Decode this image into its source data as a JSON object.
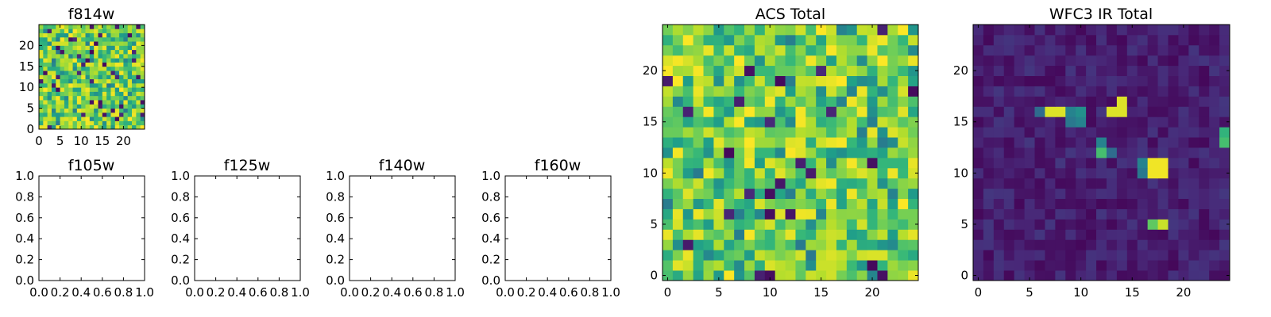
{
  "chart_data": [
    {
      "type": "heatmap",
      "title": "f814w",
      "grid_size": 25,
      "colormap": "viridis",
      "x_ticks": [
        "0",
        "5",
        "10",
        "15",
        "20"
      ],
      "y_ticks": [
        "0",
        "5",
        "10",
        "15",
        "20"
      ],
      "xlim": [
        0,
        25
      ],
      "ylim": [
        0,
        25
      ],
      "pattern": "noisy"
    },
    {
      "type": "scatter",
      "title": "f105w",
      "series": [],
      "xlim": [
        0,
        1
      ],
      "ylim": [
        0,
        1
      ],
      "x_ticks": [
        "0.0",
        "0.2",
        "0.4",
        "0.6",
        "0.8",
        "1.0"
      ],
      "y_ticks": [
        "0.0",
        "0.2",
        "0.4",
        "0.6",
        "0.8",
        "1.0"
      ]
    },
    {
      "type": "scatter",
      "title": "f125w",
      "series": [],
      "xlim": [
        0,
        1
      ],
      "ylim": [
        0,
        1
      ],
      "x_ticks": [
        "0.0",
        "0.2",
        "0.4",
        "0.6",
        "0.8",
        "1.0"
      ],
      "y_ticks": [
        "0.0",
        "0.2",
        "0.4",
        "0.6",
        "0.8",
        "1.0"
      ]
    },
    {
      "type": "scatter",
      "title": "f140w",
      "series": [],
      "xlim": [
        0,
        1
      ],
      "ylim": [
        0,
        1
      ],
      "x_ticks": [
        "0.0",
        "0.2",
        "0.4",
        "0.6",
        "0.8",
        "1.0"
      ],
      "y_ticks": [
        "0.0",
        "0.2",
        "0.4",
        "0.6",
        "0.8",
        "1.0"
      ]
    },
    {
      "type": "scatter",
      "title": "f160w",
      "series": [],
      "xlim": [
        0,
        1
      ],
      "ylim": [
        0,
        1
      ],
      "x_ticks": [
        "0.0",
        "0.2",
        "0.4",
        "0.6",
        "0.8",
        "1.0"
      ],
      "y_ticks": [
        "0.0",
        "0.2",
        "0.4",
        "0.6",
        "0.8",
        "1.0"
      ]
    },
    {
      "type": "heatmap",
      "title": "ACS Total",
      "grid_size": 25,
      "colormap": "viridis",
      "x_ticks": [
        "0",
        "5",
        "10",
        "15",
        "20"
      ],
      "y_ticks": [
        "0",
        "5",
        "10",
        "15",
        "20"
      ],
      "xlim": [
        -0.5,
        24.5
      ],
      "ylim": [
        -0.5,
        24.5
      ],
      "pattern": "noisy"
    },
    {
      "type": "heatmap",
      "title": "WFC3 IR Total",
      "grid_size": 25,
      "colormap": "viridis",
      "x_ticks": [
        "0",
        "5",
        "10",
        "15",
        "20"
      ],
      "y_ticks": [
        "0",
        "5",
        "10",
        "15",
        "20"
      ],
      "xlim": [
        -0.5,
        24.5
      ],
      "ylim": [
        -0.5,
        24.5
      ],
      "pattern": "sources",
      "bright_pixels": [
        {
          "x": 7,
          "y": 16,
          "value": 0.95
        },
        {
          "x": 8,
          "y": 16,
          "value": 0.95
        },
        {
          "x": 9,
          "y": 16,
          "value": 0.45
        },
        {
          "x": 10,
          "y": 16,
          "value": 0.5
        },
        {
          "x": 9,
          "y": 15,
          "value": 0.4
        },
        {
          "x": 10,
          "y": 15,
          "value": 0.45
        },
        {
          "x": 6,
          "y": 16,
          "value": 0.35
        },
        {
          "x": 13,
          "y": 16,
          "value": 0.95
        },
        {
          "x": 14,
          "y": 16,
          "value": 0.95
        },
        {
          "x": 14,
          "y": 17,
          "value": 0.95
        },
        {
          "x": 12,
          "y": 12,
          "value": 0.7
        },
        {
          "x": 12,
          "y": 13,
          "value": 0.45
        },
        {
          "x": 13,
          "y": 12,
          "value": 0.35
        },
        {
          "x": 17,
          "y": 11,
          "value": 0.98
        },
        {
          "x": 18,
          "y": 11,
          "value": 0.98
        },
        {
          "x": 17,
          "y": 10,
          "value": 0.98
        },
        {
          "x": 18,
          "y": 10,
          "value": 0.98
        },
        {
          "x": 16,
          "y": 11,
          "value": 0.45
        },
        {
          "x": 16,
          "y": 10,
          "value": 0.4
        },
        {
          "x": 17,
          "y": 5,
          "value": 0.75
        },
        {
          "x": 18,
          "y": 5,
          "value": 0.92
        },
        {
          "x": 24,
          "y": 13,
          "value": 0.7
        },
        {
          "x": 24,
          "y": 14,
          "value": 0.65
        }
      ]
    }
  ]
}
